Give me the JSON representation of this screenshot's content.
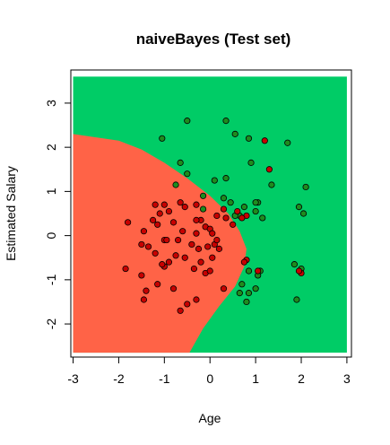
{
  "chart_data": {
    "type": "scatter",
    "title": "naiveBayes (Test set)",
    "xlabel": "Age",
    "ylabel": "Estimated Salary",
    "xlim": [
      -3.05,
      3.1
    ],
    "ylim": [
      -2.75,
      3.75
    ],
    "xticks": [
      "-3",
      "-2",
      "-1",
      "0",
      "1",
      "2",
      "3"
    ],
    "yticks": [
      "-2",
      "-1",
      "0",
      "1",
      "2",
      "3"
    ],
    "grid": false,
    "legend": "none",
    "region_colors": {
      "class_0": "#FF6347",
      "class_1": "#00CC66"
    },
    "point_colors": {
      "class_0": "#C80000",
      "class_1": "#1E8C1E"
    },
    "decision_boundary": [
      [
        -3.0,
        2.3
      ],
      [
        -2.0,
        2.15
      ],
      [
        -1.5,
        1.95
      ],
      [
        -1.0,
        1.65
      ],
      [
        -0.5,
        1.3
      ],
      [
        0.0,
        0.9
      ],
      [
        0.4,
        0.5
      ],
      [
        0.65,
        0.1
      ],
      [
        0.8,
        -0.3
      ],
      [
        0.75,
        -0.7
      ],
      [
        0.55,
        -1.15
      ],
      [
        0.2,
        -1.6
      ],
      [
        -0.15,
        -2.1
      ],
      [
        -0.45,
        -2.65
      ]
    ],
    "series": [
      {
        "values": [
          [
            -1.0,
            0.7
          ],
          [
            -1.1,
            0.5
          ],
          [
            -0.9,
            0.55
          ],
          [
            -1.2,
            0.7
          ],
          [
            -1.25,
            0.35
          ],
          [
            -1.8,
            0.3
          ],
          [
            -1.45,
            0.1
          ],
          [
            -1.5,
            -0.2
          ],
          [
            -1.0,
            -0.1
          ],
          [
            -0.8,
            0.3
          ],
          [
            -0.6,
            0.1
          ],
          [
            -0.3,
            0.7
          ],
          [
            -0.2,
            0.35
          ],
          [
            -0.1,
            0.2
          ],
          [
            0.0,
            0.15
          ],
          [
            0.05,
            0.05
          ],
          [
            0.1,
            -0.2
          ],
          [
            0.2,
            -0.3
          ],
          [
            0.15,
            -0.1
          ],
          [
            -0.05,
            -0.25
          ],
          [
            -0.25,
            -0.3
          ],
          [
            -0.3,
            0.05
          ],
          [
            -0.4,
            -0.2
          ],
          [
            -0.55,
            -0.5
          ],
          [
            -0.75,
            -0.45
          ],
          [
            -0.9,
            -0.6
          ],
          [
            -1.0,
            -0.7
          ],
          [
            -1.05,
            -0.65
          ],
          [
            -1.2,
            -0.4
          ],
          [
            -1.35,
            -0.25
          ],
          [
            -1.85,
            -0.75
          ],
          [
            -1.5,
            -0.9
          ],
          [
            -1.4,
            -1.25
          ],
          [
            -1.45,
            -1.45
          ],
          [
            -1.15,
            -1.1
          ],
          [
            -0.8,
            -1.2
          ],
          [
            -0.5,
            -1.55
          ],
          [
            -0.3,
            -1.45
          ],
          [
            -0.65,
            -1.7
          ],
          [
            -0.1,
            -0.85
          ],
          [
            0.0,
            -0.8
          ],
          [
            0.3,
            -1.2
          ],
          [
            0.05,
            -0.5
          ],
          [
            -0.2,
            -0.6
          ],
          [
            -0.55,
            0.65
          ],
          [
            -0.65,
            0.75
          ],
          [
            0.15,
            0.45
          ],
          [
            0.35,
            0.4
          ],
          [
            0.3,
            0.6
          ],
          [
            0.5,
            0.25
          ],
          [
            -0.95,
            -0.1
          ],
          [
            -0.3,
            0.35
          ],
          [
            -0.7,
            -0.1
          ],
          [
            -1.15,
            0.25
          ],
          [
            -0.35,
            -0.75
          ]
        ]
      },
      {
        "values": [
          [
            -0.5,
            2.6
          ],
          [
            0.35,
            2.6
          ],
          [
            0.55,
            2.3
          ],
          [
            -1.05,
            2.2
          ],
          [
            0.85,
            2.2
          ],
          [
            1.7,
            2.1
          ],
          [
            -0.65,
            1.65
          ],
          [
            0.9,
            1.65
          ],
          [
            -0.5,
            1.4
          ],
          [
            1.35,
            1.15
          ],
          [
            2.1,
            1.1
          ],
          [
            0.1,
            1.25
          ],
          [
            0.35,
            1.3
          ],
          [
            -0.15,
            0.9
          ],
          [
            -0.75,
            1.15
          ],
          [
            0.45,
            0.75
          ],
          [
            0.75,
            0.65
          ],
          [
            1.05,
            0.75
          ],
          [
            1.0,
            0.55
          ],
          [
            1.15,
            0.4
          ],
          [
            1.95,
            0.65
          ],
          [
            2.05,
            0.5
          ],
          [
            0.65,
            0.45
          ],
          [
            0.3,
            0.85
          ],
          [
            1.0,
            0.75
          ],
          [
            1.85,
            -0.65
          ],
          [
            2.0,
            -0.75
          ],
          [
            1.9,
            -1.45
          ],
          [
            1.1,
            -0.8
          ],
          [
            0.7,
            -1.1
          ],
          [
            0.8,
            -1.5
          ],
          [
            0.65,
            -1.3
          ],
          [
            0.85,
            -0.8
          ],
          [
            -0.15,
            0.6
          ],
          [
            0.55,
            0.45
          ],
          [
            0.85,
            -1.3
          ],
          [
            1.0,
            -1.2
          ],
          [
            1.05,
            -0.9
          ]
        ]
      },
      {
        "values": [
          [
            1.2,
            2.15
          ],
          [
            1.3,
            1.5
          ],
          [
            0.8,
            0.45
          ],
          [
            0.7,
            0.4
          ],
          [
            0.6,
            0.55
          ],
          [
            2.0,
            -0.85
          ],
          [
            1.95,
            -0.8
          ],
          [
            0.8,
            -0.55
          ],
          [
            0.75,
            -0.6
          ],
          [
            1.05,
            -0.8
          ]
        ]
      }
    ]
  }
}
